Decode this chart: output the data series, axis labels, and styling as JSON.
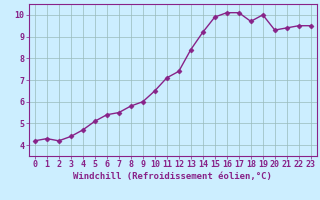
{
  "x": [
    0,
    1,
    2,
    3,
    4,
    5,
    6,
    7,
    8,
    9,
    10,
    11,
    12,
    13,
    14,
    15,
    16,
    17,
    18,
    19,
    20,
    21,
    22,
    23
  ],
  "y": [
    4.2,
    4.3,
    4.2,
    4.4,
    4.7,
    5.1,
    5.4,
    5.5,
    5.8,
    6.0,
    6.5,
    7.1,
    7.4,
    8.4,
    9.2,
    9.9,
    10.1,
    10.1,
    9.7,
    10.0,
    9.3,
    9.4,
    9.5,
    9.5
  ],
  "line_color": "#882288",
  "marker": "D",
  "marker_size": 2.5,
  "bg_color": "#cceeff",
  "grid_color": "#99bbbb",
  "xlabel": "Windchill (Refroidissement éolien,°C)",
  "xlim": [
    -0.5,
    23.5
  ],
  "ylim": [
    3.5,
    10.5
  ],
  "yticks": [
    4,
    5,
    6,
    7,
    8,
    9,
    10
  ],
  "xticks": [
    0,
    1,
    2,
    3,
    4,
    5,
    6,
    7,
    8,
    9,
    10,
    11,
    12,
    13,
    14,
    15,
    16,
    17,
    18,
    19,
    20,
    21,
    22,
    23
  ],
  "tick_color": "#882288",
  "xlabel_fontsize": 6.5,
  "tick_fontsize": 6.0,
  "spine_color": "#882288",
  "linewidth": 1.0
}
